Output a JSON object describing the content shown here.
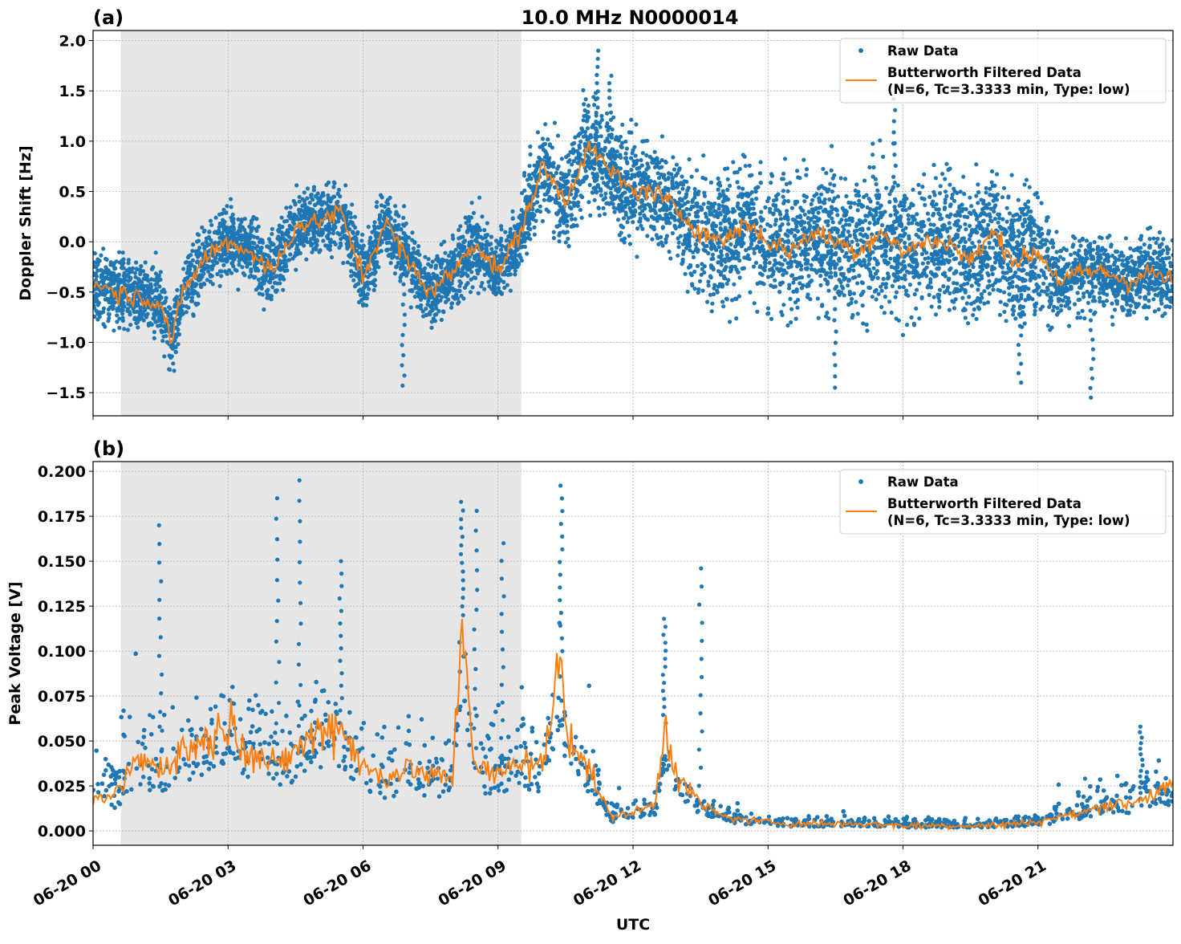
{
  "figure_title": "10.0 MHz N0000014",
  "colors": {
    "raw": "#1f77b4",
    "filtered": "#ff7f0e",
    "shade": "#e6e6e6",
    "grid": "#b0b0b0"
  },
  "chart_data": [
    {
      "panel_label": "(a)",
      "type": "scatter",
      "title": "10.0 MHz N0000014",
      "xlabel": "",
      "ylabel": "Doppler Shift [Hz]",
      "xlim_hours": [
        0,
        24
      ],
      "ylim": [
        -1.73,
        2.1
      ],
      "yticks": [
        -1.5,
        -1.0,
        -0.5,
        0.0,
        0.5,
        1.0,
        1.5,
        2.0
      ],
      "ytick_labels": [
        "−1.5",
        "−1.0",
        "−0.5",
        "0.0",
        "0.5",
        "1.0",
        "1.5",
        "2.0"
      ],
      "grid": true,
      "shaded_interval": [
        "06-20 00:37",
        "06-20 09:31"
      ],
      "legend": {
        "placement": "top-right",
        "entries": [
          "Raw Data",
          "Butterworth Filtered Data",
          "(N=6, Tc=3.3333 min, Type: low)"
        ]
      },
      "series": [
        {
          "name": "Butterworth Filtered Data (N=6, Tc=3.3333 min, Type: low)",
          "kind": "line",
          "x_hours": [
            0,
            0.5,
            1,
            1.5,
            1.75,
            2,
            2.5,
            3,
            3.5,
            4,
            4.5,
            5,
            5.5,
            6,
            6.5,
            7,
            7.5,
            8,
            8.5,
            9,
            9.5,
            10,
            10.5,
            11,
            11.5,
            12,
            12.5,
            13,
            13.5,
            14,
            14.5,
            15,
            15.5,
            16,
            16.5,
            17,
            17.5,
            18,
            18.5,
            19,
            19.5,
            20,
            20.5,
            21,
            21.5,
            22,
            22.5,
            23,
            23.5,
            24
          ],
          "y": [
            -0.4,
            -0.5,
            -0.55,
            -0.6,
            -1.0,
            -0.5,
            -0.15,
            0.0,
            -0.1,
            -0.3,
            0.15,
            0.2,
            0.3,
            -0.35,
            0.2,
            -0.2,
            -0.5,
            -0.3,
            0.0,
            -0.3,
            0.1,
            0.75,
            0.4,
            0.95,
            0.7,
            0.5,
            0.5,
            0.3,
            0.1,
            0.0,
            0.2,
            0.0,
            -0.1,
            0.1,
            0.0,
            -0.1,
            0.1,
            -0.1,
            0.0,
            0.0,
            -0.2,
            0.1,
            -0.2,
            -0.1,
            -0.4,
            -0.3,
            -0.3,
            -0.4,
            -0.3,
            -0.4
          ]
        },
        {
          "name": "Raw Data",
          "kind": "scatter",
          "spread_x_hours": [
            0,
            9.5,
            10,
            13,
            13.5,
            21,
            21.5,
            24
          ],
          "spread_halfwidth": [
            0.3,
            0.3,
            0.45,
            0.45,
            0.6,
            0.6,
            0.35,
            0.35
          ],
          "extremes": [
            [
              11.2,
              1.9
            ],
            [
              11.5,
              1.65
            ],
            [
              16.5,
              -1.45
            ],
            [
              6.9,
              -1.43
            ],
            [
              22.2,
              -1.55
            ],
            [
              20.6,
              -1.4
            ],
            [
              17.8,
              1.42
            ]
          ]
        }
      ]
    },
    {
      "panel_label": "(b)",
      "type": "scatter",
      "xlabel": "UTC",
      "ylabel": "Peak Voltage [V]",
      "xlim_hours": [
        0,
        24
      ],
      "ylim": [
        -0.008,
        0.2054
      ],
      "yticks": [
        0,
        0.025,
        0.05,
        0.075,
        0.1,
        0.125,
        0.15,
        0.175,
        0.2
      ],
      "ytick_labels": [
        "0.000",
        "0.025",
        "0.050",
        "0.075",
        "0.100",
        "0.125",
        "0.150",
        "0.175",
        "0.200"
      ],
      "xticks_hours": [
        0,
        3,
        6,
        9,
        12,
        15,
        18,
        21
      ],
      "xtick_labels": [
        "06-20 00",
        "06-20 03",
        "06-20 06",
        "06-20 09",
        "06-20 12",
        "06-20 15",
        "06-20 18",
        "06-20 21"
      ],
      "grid": true,
      "shaded_interval": [
        "06-20 00:37",
        "06-20 09:31"
      ],
      "legend": {
        "placement": "top-right",
        "entries": [
          "Raw Data",
          "Butterworth Filtered Data",
          "(N=6, Tc=3.3333 min, Type: low)"
        ]
      },
      "series": [
        {
          "name": "Butterworth Filtered Data (N=6, Tc=3.3333 min, Type: low)",
          "kind": "line",
          "x_hours": [
            0,
            0.5,
            1,
            1.5,
            2,
            2.5,
            3,
            3.5,
            4,
            4.5,
            5,
            5.5,
            6,
            6.5,
            7,
            7.5,
            8,
            8.2,
            8.5,
            9,
            9.5,
            10,
            10.4,
            10.5,
            11,
            11.5,
            12,
            12.5,
            12.7,
            13,
            13.5,
            14,
            14.5,
            15,
            15.5,
            16,
            17,
            18,
            19,
            20,
            21,
            21.5,
            22,
            22.5,
            23,
            23.5,
            24
          ],
          "y": [
            0.015,
            0.02,
            0.04,
            0.035,
            0.045,
            0.05,
            0.06,
            0.045,
            0.035,
            0.045,
            0.055,
            0.06,
            0.035,
            0.03,
            0.035,
            0.03,
            0.03,
            0.12,
            0.035,
            0.03,
            0.04,
            0.035,
            0.1,
            0.06,
            0.035,
            0.008,
            0.01,
            0.015,
            0.06,
            0.03,
            0.015,
            0.008,
            0.006,
            0.005,
            0.004,
            0.004,
            0.004,
            0.003,
            0.003,
            0.003,
            0.005,
            0.008,
            0.01,
            0.015,
            0.015,
            0.02,
            0.025
          ]
        },
        {
          "name": "Raw Data",
          "kind": "scatter",
          "spread_x_hours": [
            0,
            11,
            11.3,
            14,
            14.5,
            21,
            21.5,
            24
          ],
          "spread_halfwidth": [
            0.025,
            0.025,
            0.006,
            0.006,
            0.003,
            0.003,
            0.01,
            0.012
          ],
          "extremes": [
            [
              1.5,
              0.17
            ],
            [
              4.1,
              0.185
            ],
            [
              4.6,
              0.195
            ],
            [
              5.5,
              0.15
            ],
            [
              8.2,
              0.183
            ],
            [
              8.5,
              0.178
            ],
            [
              9.1,
              0.16
            ],
            [
              10.4,
              0.192
            ],
            [
              12.7,
              0.118
            ],
            [
              13.5,
              0.146
            ],
            [
              23.3,
              0.058
            ]
          ]
        }
      ]
    }
  ]
}
